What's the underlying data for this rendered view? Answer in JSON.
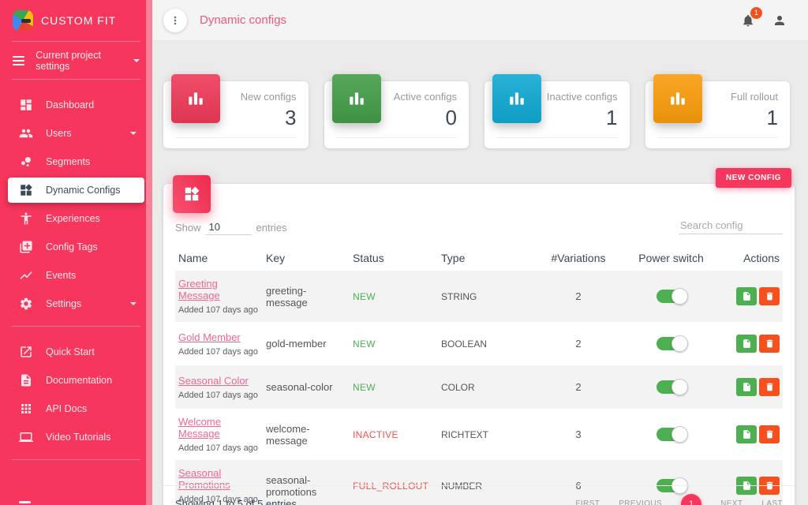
{
  "brand": {
    "name": "CUSTOM FIT"
  },
  "sidebar": {
    "project_selector": {
      "label": "Current project settings"
    },
    "items": [
      {
        "label": "Dashboard",
        "icon": "dashboard-icon",
        "active": false,
        "caret": false
      },
      {
        "label": "Users",
        "icon": "users-icon",
        "active": false,
        "caret": true
      },
      {
        "label": "Segments",
        "icon": "segments-icon",
        "active": false,
        "caret": false
      },
      {
        "label": "Dynamic Configs",
        "icon": "widgets-icon",
        "active": true,
        "caret": false
      },
      {
        "label": "Experiences",
        "icon": "experiences-icon",
        "active": false,
        "caret": false
      },
      {
        "label": "Config Tags",
        "icon": "config-tags-icon",
        "active": false,
        "caret": false
      },
      {
        "label": "Events",
        "icon": "events-icon",
        "active": false,
        "caret": false
      },
      {
        "label": "Settings",
        "icon": "settings-icon",
        "active": false,
        "caret": true
      }
    ],
    "secondary_items": [
      {
        "label": "Quick Start",
        "icon": "open-in-new-icon"
      },
      {
        "label": "Documentation",
        "icon": "document-icon"
      },
      {
        "label": "API Docs",
        "icon": "apps-grid-icon"
      },
      {
        "label": "Video Tutorials",
        "icon": "laptop-icon"
      }
    ]
  },
  "header": {
    "title": "Dynamic configs",
    "notification_count": "1"
  },
  "stats": [
    {
      "label": "New configs",
      "value": "3",
      "color": "#ef3a58"
    },
    {
      "label": "Active configs",
      "value": "0",
      "color": "#449d48"
    },
    {
      "label": "Inactive configs",
      "value": "1",
      "color": "#10a9d2"
    },
    {
      "label": "Full rollout",
      "value": "1",
      "color": "#fa9c0c"
    }
  ],
  "configs": {
    "new_config_button": "NEW CONFIG",
    "show_label": "Show",
    "show_value": "10",
    "entries_label": "entries",
    "search_placeholder": "Search config",
    "columns": [
      "Name",
      "Key",
      "Status",
      "Type",
      "#Variations",
      "Power switch",
      "Actions"
    ],
    "rows": [
      {
        "name": "Greeting Message",
        "added": "Added 107 days ago",
        "key": "greeting-message",
        "status": "NEW",
        "status_color": "#4caf50",
        "type": "STRING",
        "variations": "2",
        "power": true
      },
      {
        "name": "Gold Member",
        "added": "Added 107 days ago",
        "key": "gold-member",
        "status": "NEW",
        "status_color": "#4caf50",
        "type": "BOOLEAN",
        "variations": "2",
        "power": true
      },
      {
        "name": "Seasonal Color",
        "added": "Added 107 days ago",
        "key": "seasonal-color",
        "status": "NEW",
        "status_color": "#4caf50",
        "type": "COLOR",
        "variations": "2",
        "power": true
      },
      {
        "name": "Welcome Message",
        "added": "Added 107 days ago",
        "key": "welcome-message",
        "status": "INACTIVE",
        "status_color": "#ef5350",
        "type": "RICHTEXT",
        "variations": "3",
        "power": true
      },
      {
        "name": "Seasonal Promotions",
        "added": "Added 107 days ago",
        "key": "seasonal-promotions",
        "status": "FULL_ROLLOUT",
        "status_color": "#ef5350",
        "type": "NUMBER",
        "variations": "6",
        "power": true
      }
    ],
    "footer": {
      "showing": "Showing 1 to 5 of 5 entries",
      "pagination": [
        "FIRST",
        "PREVIOUS",
        "1",
        "NEXT",
        "LAST"
      ],
      "active_page": "1"
    }
  }
}
